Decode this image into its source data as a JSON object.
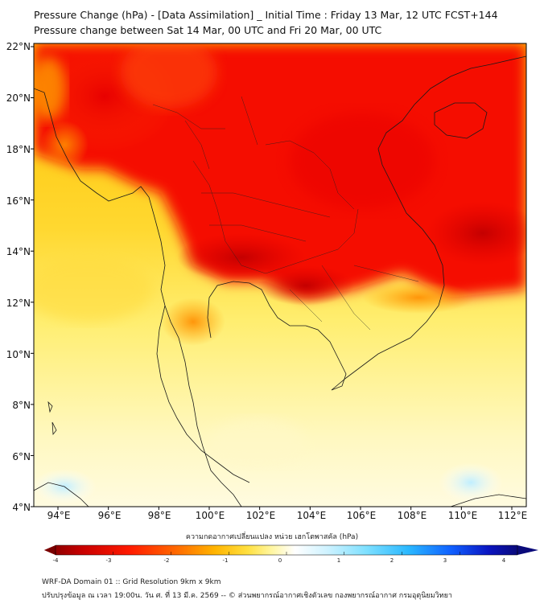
{
  "title": {
    "line1": "Pressure Change (hPa) - [Data Assimilation] _ Initial Time : Friday 13 Mar, 12 UTC FCST+144",
    "line2": "Pressure change between Sat 14 Mar, 00 UTC and Fri 20 Mar, 00 UTC"
  },
  "axes": {
    "lat_labels": [
      "22°N",
      "20°N",
      "18°N",
      "16°N",
      "14°N",
      "12°N",
      "10°N",
      "8°N",
      "6°N",
      "4°N"
    ],
    "lon_labels": [
      "94°E",
      "96°E",
      "98°E",
      "100°E",
      "102°E",
      "104°E",
      "106°E",
      "108°E",
      "110°E",
      "112°E"
    ]
  },
  "colorbar": {
    "label": "ความกดอากาศเปลี่ยนแปลง หน่วย เฮกโตพาสคัล (hPa)",
    "ticks": [
      "-4",
      "-3",
      "-2",
      "-1",
      "0",
      "1",
      "2",
      "3",
      "4"
    ],
    "colors": [
      "#7a0000",
      "#c80000",
      "#ff1a00",
      "#ff6a00",
      "#ffb400",
      "#ffe040",
      "#fff6a0",
      "#ffffff",
      "#cdf2ff",
      "#7fe0ff",
      "#2ab8ff",
      "#1060ff",
      "#0a14c0",
      "#0a0a7a"
    ]
  },
  "footer": {
    "line1": "WRF-DA Domain 01 :: Grid Resolution 9km x 9km",
    "line2": "ปรับปรุงข้อมูล ณ เวลา 19:00น. วัน ศ. ที่ 13 มี.ค. 2569 -- © ส่วนพยากรณ์อากาศเชิงตัวเลข กองพยากรณ์อากาศ กรมอุตุนิยมวิทยา"
  }
}
